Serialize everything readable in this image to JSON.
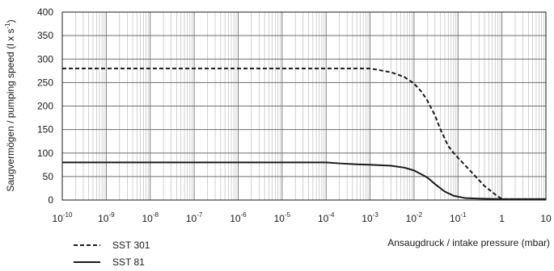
{
  "chart_data": {
    "type": "line",
    "x_scale": "log",
    "xlim": [
      "1e-10",
      "10"
    ],
    "ylim": [
      0,
      400
    ],
    "grid": true,
    "title": "",
    "xlabel": "Ansaugdruck / intake pressure (mbar)",
    "ylabel": "Saugvermögen / pumping speed  (l x s",
    "ylabel_unit_exponent": "-1",
    "ylabel_close": ")",
    "x_ticks": [
      {
        "base": "10",
        "exp": "-10",
        "value": 1e-10
      },
      {
        "base": "10",
        "exp": "-9",
        "value": 1e-09
      },
      {
        "base": "10",
        "exp": "-8",
        "value": 1e-08
      },
      {
        "base": "10",
        "exp": "-7",
        "value": 1e-07
      },
      {
        "base": "10",
        "exp": "-6",
        "value": 1e-06
      },
      {
        "base": "10",
        "exp": "-5",
        "value": 1e-05
      },
      {
        "base": "10",
        "exp": "-4",
        "value": 0.0001
      },
      {
        "base": "10",
        "exp": "-3",
        "value": 0.001
      },
      {
        "base": "10",
        "exp": "-2",
        "value": 0.01
      },
      {
        "base": "10",
        "exp": "-1",
        "value": 0.1
      },
      {
        "base": "1",
        "exp": "",
        "value": 1
      },
      {
        "base": "10",
        "exp": "",
        "value": 10
      }
    ],
    "y_ticks": [
      "0",
      "50",
      "100",
      "150",
      "200",
      "250",
      "300",
      "350",
      "400"
    ],
    "legend_position": "bottom-left",
    "series": [
      {
        "name": "SST 301",
        "style": "dashed",
        "color": "#1a1a1a",
        "points": [
          [
            1e-10,
            280
          ],
          [
            1e-05,
            280
          ],
          [
            0.0001,
            280
          ],
          [
            0.001,
            280
          ],
          [
            0.003,
            272
          ],
          [
            0.006,
            262
          ],
          [
            0.01,
            248
          ],
          [
            0.015,
            230
          ],
          [
            0.02,
            212
          ],
          [
            0.03,
            180
          ],
          [
            0.04,
            150
          ],
          [
            0.06,
            115
          ],
          [
            0.08,
            100
          ],
          [
            0.1,
            90
          ],
          [
            0.2,
            60
          ],
          [
            0.4,
            30
          ],
          [
            0.7,
            12
          ],
          [
            1,
            2
          ],
          [
            2,
            2
          ],
          [
            10,
            2
          ]
        ]
      },
      {
        "name": "SST 81",
        "style": "solid",
        "color": "#1a1a1a",
        "points": [
          [
            1e-10,
            80
          ],
          [
            1e-05,
            80
          ],
          [
            0.0001,
            80
          ],
          [
            0.0002,
            78
          ],
          [
            0.0005,
            76
          ],
          [
            0.001,
            75
          ],
          [
            0.003,
            73
          ],
          [
            0.006,
            69
          ],
          [
            0.01,
            63
          ],
          [
            0.02,
            48
          ],
          [
            0.03,
            34
          ],
          [
            0.05,
            18
          ],
          [
            0.08,
            9
          ],
          [
            0.15,
            4
          ],
          [
            0.3,
            3
          ],
          [
            1,
            2
          ],
          [
            10,
            2
          ]
        ]
      }
    ]
  }
}
